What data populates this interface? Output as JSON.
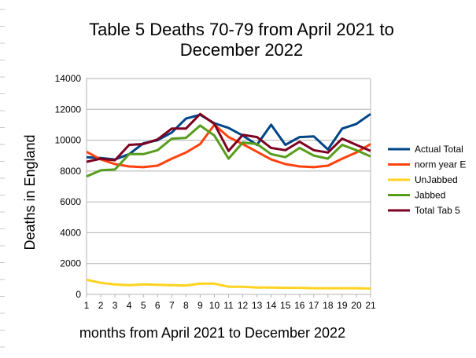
{
  "chart_data": {
    "type": "line",
    "title_lines": [
      "Table 5 Deaths 70-79 from April 2021 to",
      "December 2022"
    ],
    "xlabel": "months from April 2021 to December 2022",
    "ylabel": "Deaths in England",
    "x": [
      1,
      2,
      3,
      4,
      5,
      6,
      7,
      8,
      9,
      10,
      11,
      12,
      13,
      14,
      15,
      16,
      17,
      18,
      19,
      20,
      21
    ],
    "ylim": [
      0,
      14000
    ],
    "yticks": [
      0,
      2000,
      4000,
      6000,
      8000,
      10000,
      12000,
      14000
    ],
    "grid": true,
    "legend_position": "right",
    "series": [
      {
        "name": "Actual Total",
        "color": "#004586",
        "values": [
          8900,
          8850,
          8750,
          9100,
          9800,
          10000,
          10500,
          11400,
          11650,
          11100,
          10800,
          10300,
          9700,
          11000,
          9700,
          10200,
          10250,
          9400,
          10750,
          11050,
          11700
        ]
      },
      {
        "name": "norm year E",
        "color": "#ff420e",
        "values": [
          9250,
          8750,
          8450,
          8300,
          8250,
          8350,
          8800,
          9200,
          9750,
          11000,
          10200,
          9750,
          9250,
          8750,
          8450,
          8300,
          8250,
          8350,
          8800,
          9200,
          9750
        ]
      },
      {
        "name": "UnJabbed",
        "color": "#ffd320",
        "values": [
          950,
          750,
          650,
          600,
          650,
          620,
          600,
          580,
          700,
          700,
          500,
          500,
          450,
          450,
          430,
          430,
          400,
          400,
          400,
          400,
          380
        ]
      },
      {
        "name": "Jabbed",
        "color": "#579d1c",
        "values": [
          7650,
          8050,
          8100,
          9100,
          9100,
          9350,
          10100,
          10150,
          10950,
          10300,
          8800,
          9850,
          9750,
          9100,
          8900,
          9500,
          9000,
          8800,
          9700,
          9350,
          8950
        ]
      },
      {
        "name": "Total Tab 5",
        "color": "#7e0021",
        "values": [
          8600,
          8800,
          8700,
          9700,
          9750,
          10050,
          10750,
          10750,
          11700,
          11050,
          9300,
          10350,
          10200,
          9500,
          9350,
          9900,
          9350,
          9200,
          10100,
          9700,
          9300
        ]
      }
    ]
  }
}
